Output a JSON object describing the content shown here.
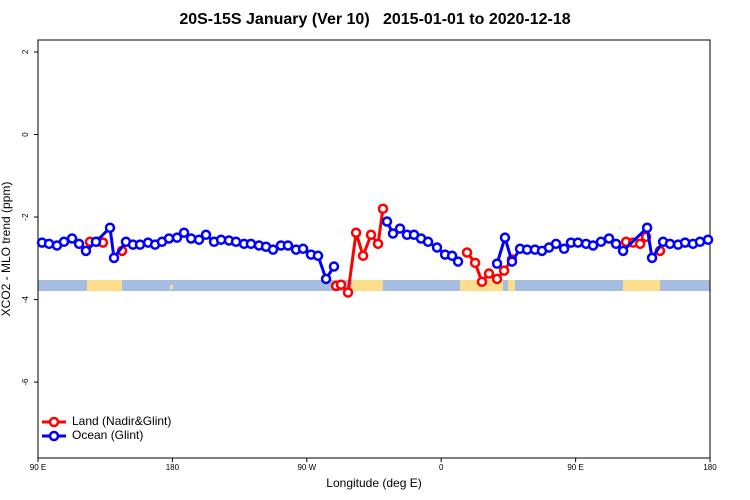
{
  "chart_data": {
    "type": "line",
    "title": "20S-15S January (Ver 10)   2015-01-01 to 2020-12-18",
    "x_label": "Longitude (deg E)",
    "y_label": "XCO2 - MLO trend (ppm)",
    "xlim": [
      90,
      540
    ],
    "ylim": [
      -7.84,
      2.29
    ],
    "xticks": [
      {
        "value": 90,
        "label": "90 E"
      },
      180,
      {
        "value": 270,
        "label": "90 W"
      },
      {
        "value": 360,
        "label": "0"
      },
      {
        "value": 450,
        "label": "90 E"
      },
      {
        "value": 540,
        "label": "180"
      }
    ],
    "yticks": [
      2,
      0,
      -2,
      -4,
      -6
    ],
    "legend": "bottomleft",
    "series": [
      {
        "name": "Land (Nadir&Glint)",
        "color": "#ff0000",
        "x": [
          124.8,
          129.5,
          133.5,
          null,
          146.3,
          null,
          289.6,
          292.9,
          297.6,
          303.0,
          307.7,
          313.0,
          317.7,
          321.0,
          null,
          377.3,
          382.7,
          387.3,
          392.0,
          397.4,
          402.1,
          407.4,
          null,
          483.8,
          488.5,
          493.2,
          497.2,
          null,
          506.5
        ],
        "values": [
          -2.6,
          -2.6,
          -2.62,
          null,
          -2.82,
          null,
          -3.67,
          -3.64,
          -3.83,
          -2.38,
          -2.94,
          -2.43,
          -2.65,
          -1.8,
          null,
          -2.86,
          -3.11,
          -3.57,
          -3.37,
          -3.5,
          -3.3,
          -3.03,
          null,
          -2.6,
          -2.62,
          -2.65,
          -2.48,
          null,
          -2.82
        ]
      },
      {
        "name": "Ocean (Glint)",
        "color": "#0000ff",
        "x": [
          92.7,
          97.4,
          102.7,
          107.4,
          112.8,
          117.5,
          122.1,
          128.8,
          138.2,
          140.9,
          148.9,
          153.6,
          158.3,
          163.7,
          168.4,
          173.0,
          177.7,
          183.1,
          187.8,
          192.5,
          197.8,
          202.5,
          207.9,
          212.6,
          217.9,
          222.6,
          228.0,
          232.6,
          238.0,
          242.7,
          247.4,
          252.7,
          257.4,
          262.8,
          267.5,
          272.8,
          277.5,
          282.9,
          288.2,
          null,
          323.7,
          327.7,
          332.4,
          337.1,
          341.8,
          346.5,
          351.2,
          357.2,
          362.6,
          367.3,
          371.3,
          null,
          397.4,
          402.7,
          407.4,
          412.8,
          417.5,
          422.8,
          427.5,
          432.2,
          436.9,
          442.3,
          446.9,
          451.6,
          457.0,
          461.7,
          467.0,
          472.4,
          477.1,
          481.8,
          497.9,
          501.2,
          508.6,
          513.2,
          518.6,
          523.3,
          528.6,
          533.3,
          538.7
        ],
        "values": [
          -2.62,
          -2.65,
          -2.69,
          -2.6,
          -2.52,
          -2.65,
          -2.82,
          -2.6,
          -2.26,
          -2.99,
          -2.6,
          -2.67,
          -2.67,
          -2.62,
          -2.67,
          -2.6,
          -2.52,
          -2.5,
          -2.38,
          -2.52,
          -2.55,
          -2.43,
          -2.6,
          -2.55,
          -2.57,
          -2.6,
          -2.65,
          -2.65,
          -2.69,
          -2.72,
          -2.79,
          -2.69,
          -2.69,
          -2.79,
          -2.77,
          -2.91,
          -2.94,
          -3.5,
          -3.2,
          null,
          -2.11,
          -2.4,
          -2.28,
          -2.43,
          -2.43,
          -2.52,
          -2.6,
          -2.74,
          -2.91,
          -2.94,
          -3.08,
          null,
          -3.13,
          -2.5,
          -3.08,
          -2.77,
          -2.79,
          -2.79,
          -2.82,
          -2.74,
          -2.65,
          -2.77,
          -2.62,
          -2.62,
          -2.65,
          -2.69,
          -2.6,
          -2.52,
          -2.65,
          -2.82,
          -2.26,
          -2.99,
          -2.6,
          -2.65,
          -2.67,
          -2.62,
          -2.65,
          -2.6,
          -2.55
        ]
      }
    ]
  }
}
